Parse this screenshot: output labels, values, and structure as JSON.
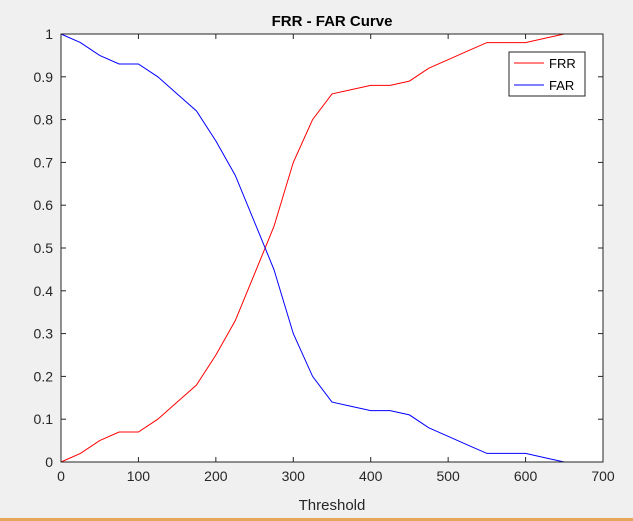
{
  "chart_data": {
    "type": "line",
    "title": "FRR - FAR Curve",
    "xlabel": "Threshold",
    "ylabel": "",
    "xlim": [
      0,
      700
    ],
    "ylim": [
      0,
      1
    ],
    "xticks": [
      0,
      100,
      200,
      300,
      400,
      500,
      600,
      700
    ],
    "yticks": [
      0,
      0.1,
      0.2,
      0.3,
      0.4,
      0.5,
      0.6,
      0.7,
      0.8,
      0.9,
      1
    ],
    "xtick_labels": [
      "0",
      "100",
      "200",
      "300",
      "400",
      "500",
      "600",
      "700"
    ],
    "ytick_labels": [
      "0",
      "0.1",
      "0.2",
      "0.3",
      "0.4",
      "0.5",
      "0.6",
      "0.7",
      "0.8",
      "0.9",
      "1"
    ],
    "grid": false,
    "legend_position": "top-right",
    "series": [
      {
        "name": "FRR",
        "color": "#ff0000",
        "x": [
          0,
          25,
          50,
          75,
          100,
          125,
          150,
          175,
          200,
          225,
          250,
          275,
          300,
          325,
          350,
          375,
          400,
          425,
          450,
          475,
          500,
          525,
          550,
          575,
          600,
          625,
          650
        ],
        "y": [
          0,
          0.02,
          0.05,
          0.07,
          0.07,
          0.1,
          0.14,
          0.18,
          0.25,
          0.33,
          0.44,
          0.55,
          0.7,
          0.8,
          0.86,
          0.87,
          0.88,
          0.88,
          0.89,
          0.92,
          0.94,
          0.96,
          0.98,
          0.98,
          0.98,
          0.99,
          1.0
        ]
      },
      {
        "name": "FAR",
        "color": "#0000ff",
        "x": [
          0,
          25,
          50,
          75,
          100,
          125,
          150,
          175,
          200,
          225,
          250,
          275,
          300,
          325,
          350,
          375,
          400,
          425,
          450,
          475,
          500,
          525,
          550,
          575,
          600,
          625,
          650
        ],
        "y": [
          1.0,
          0.98,
          0.95,
          0.93,
          0.93,
          0.9,
          0.86,
          0.82,
          0.75,
          0.67,
          0.56,
          0.45,
          0.3,
          0.2,
          0.14,
          0.13,
          0.12,
          0.12,
          0.11,
          0.08,
          0.06,
          0.04,
          0.02,
          0.02,
          0.02,
          0.01,
          0.0
        ]
      }
    ]
  }
}
